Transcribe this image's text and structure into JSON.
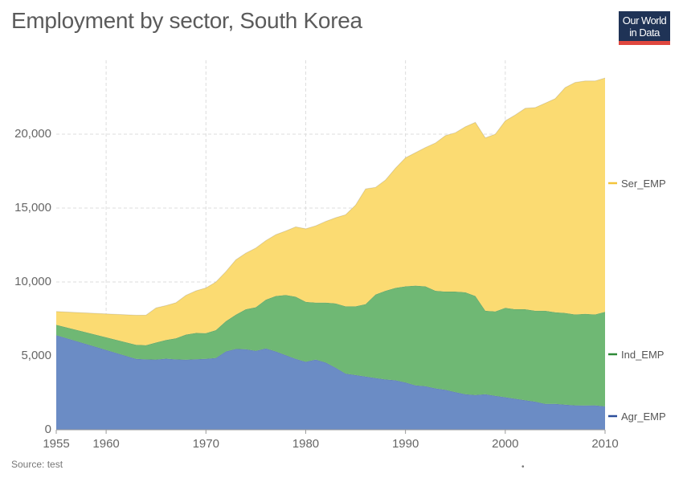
{
  "header": {
    "title": "Employment by sector, South Korea"
  },
  "logo": {
    "line1": "Our World",
    "line2": "in Data"
  },
  "footer": {
    "source": "Source: test",
    "dot": "•"
  },
  "colors": {
    "agr": "#6b8cc5",
    "ind": "#6fb874",
    "ser": "#fbdb72",
    "grid": "#dddddd",
    "axis": "#999999"
  },
  "chart_data": {
    "type": "area",
    "stacked": true,
    "xlim": [
      1955,
      2010
    ],
    "ylim": [
      0,
      25000
    ],
    "xticks": [
      {
        "value": 1955,
        "label": "1955"
      },
      {
        "value": 1960,
        "label": "1960"
      },
      {
        "value": 1970,
        "label": "1970"
      },
      {
        "value": 1980,
        "label": "1980"
      },
      {
        "value": 1990,
        "label": "1990"
      },
      {
        "value": 2000,
        "label": "2000"
      },
      {
        "value": 2010,
        "label": "2010"
      }
    ],
    "yticks": [
      {
        "value": 0,
        "label": "0"
      },
      {
        "value": 5000,
        "label": "5,000"
      },
      {
        "value": 10000,
        "label": "10,000"
      },
      {
        "value": 15000,
        "label": "15,000"
      },
      {
        "value": 20000,
        "label": "20,000"
      }
    ],
    "grid": true,
    "legend_position": "right",
    "x": [
      1955,
      1963,
      1964,
      1965,
      1966,
      1967,
      1968,
      1969,
      1970,
      1971,
      1972,
      1973,
      1974,
      1975,
      1976,
      1977,
      1978,
      1979,
      1980,
      1981,
      1982,
      1983,
      1984,
      1985,
      1986,
      1987,
      1988,
      1989,
      1990,
      1991,
      1992,
      1993,
      1994,
      1995,
      1996,
      1997,
      1998,
      1999,
      2000,
      2001,
      2002,
      2003,
      2004,
      2005,
      2006,
      2007,
      2008,
      2009,
      2010
    ],
    "series": [
      {
        "name": "Agr_EMP",
        "values": [
          6400,
          4800,
          4760,
          4750,
          4810,
          4760,
          4740,
          4770,
          4800,
          4860,
          5300,
          5470,
          5450,
          5340,
          5500,
          5300,
          5050,
          4800,
          4600,
          4750,
          4550,
          4200,
          3800,
          3700,
          3600,
          3500,
          3400,
          3350,
          3200,
          3000,
          2950,
          2800,
          2700,
          2550,
          2400,
          2350,
          2400,
          2300,
          2200,
          2100,
          2000,
          1900,
          1750,
          1750,
          1700,
          1650,
          1640,
          1650,
          1580
        ]
      },
      {
        "name": "Ind_EMP",
        "values": [
          700,
          950,
          960,
          1150,
          1260,
          1430,
          1700,
          1780,
          1730,
          1880,
          2040,
          2310,
          2700,
          2950,
          3300,
          3750,
          4070,
          4200,
          4050,
          3850,
          4050,
          4350,
          4550,
          4650,
          4900,
          5650,
          6000,
          6250,
          6500,
          6750,
          6750,
          6600,
          6650,
          6800,
          6900,
          6700,
          5650,
          5700,
          6050,
          6050,
          6150,
          6150,
          6300,
          6200,
          6200,
          6150,
          6200,
          6150,
          6400
        ]
      },
      {
        "name": "Ser_EMP",
        "values": [
          900,
          2000,
          2040,
          2350,
          2330,
          2410,
          2660,
          2850,
          3070,
          3260,
          3360,
          3720,
          3800,
          4010,
          4000,
          4150,
          4330,
          4730,
          4950,
          5200,
          5500,
          5800,
          6200,
          6850,
          7800,
          7250,
          7500,
          8100,
          8700,
          9000,
          9400,
          10000,
          10550,
          10750,
          11200,
          11750,
          11700,
          12000,
          12650,
          13150,
          13600,
          13750,
          14050,
          14450,
          15250,
          15700,
          15760,
          15800,
          15820
        ]
      }
    ]
  }
}
